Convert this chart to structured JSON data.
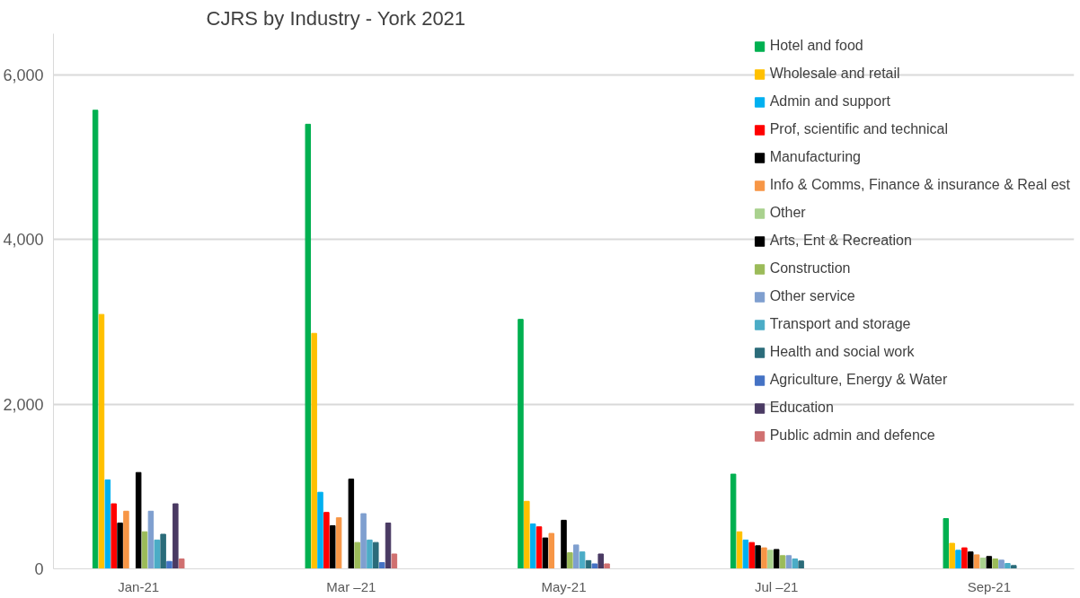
{
  "chart_data": {
    "type": "bar",
    "title": "CJRS by Industry - York 2021",
    "categories": [
      "Jan-21",
      "Mar –21",
      "May-21",
      "Jul –21",
      "Sep-21"
    ],
    "ylim": [
      0,
      6500
    ],
    "yticks": [
      0,
      {
        "value": 2000,
        "label": "2,000"
      },
      {
        "value": 4000,
        "label": "4,000"
      },
      {
        "value": 6000,
        "label": "6,000"
      }
    ],
    "grid": "y",
    "legend": "top right",
    "series": [
      {
        "name": "Hotel and food",
        "color": "#00b050",
        "values": [
          5570,
          5400,
          3030,
          1150,
          610
        ]
      },
      {
        "name": "Wholesale and retail",
        "color": "#ffc000",
        "values": [
          3090,
          2860,
          820,
          450,
          310
        ]
      },
      {
        "name": "Admin and support",
        "color": "#00b0f0",
        "values": [
          1080,
          930,
          545,
          350,
          225
        ]
      },
      {
        "name": "Prof, scientific and technical",
        "color": "#ff0000",
        "values": [
          790,
          685,
          510,
          320,
          255
        ]
      },
      {
        "name": "Manufacturing",
        "color": "#000000",
        "values": [
          556,
          524,
          375,
          280,
          205
        ]
      },
      {
        "name": "Info & Comms, Finance & insurance & Real est",
        "color": "#f79646",
        "values": [
          700,
          620,
          430,
          255,
          170
        ]
      },
      {
        "name": "Other",
        "color": "#a9d18e",
        "values": [
          null,
          null,
          null,
          225,
          130
        ]
      },
      {
        "name": "Arts, Ent & Recreation",
        "color": "#000000",
        "values": [
          1170,
          1090,
          590,
          235,
          150
        ]
      },
      {
        "name": "Construction",
        "color": "#9bbb59",
        "values": [
          450,
          320,
          195,
          160,
          120
        ]
      },
      {
        "name": "Other service",
        "color": "#7f9fcf",
        "values": [
          700,
          670,
          290,
          160,
          105
        ]
      },
      {
        "name": "Transport and storage",
        "color": "#4bacc6",
        "values": [
          350,
          350,
          205,
          120,
          65
        ]
      },
      {
        "name": "Health and social work",
        "color": "#2b6c7a",
        "values": [
          420,
          320,
          100,
          95,
          40
        ]
      },
      {
        "name": "Agriculture, Energy & Water",
        "color": "#4472c4",
        "values": [
          90,
          75,
          60,
          null,
          null
        ]
      },
      {
        "name": "Education",
        "color": "#4a3a63",
        "values": [
          790,
          556,
          180,
          null,
          null
        ]
      },
      {
        "name": "Public admin and defence",
        "color": "#d07070",
        "values": [
          120,
          180,
          60,
          null,
          null
        ]
      }
    ]
  }
}
